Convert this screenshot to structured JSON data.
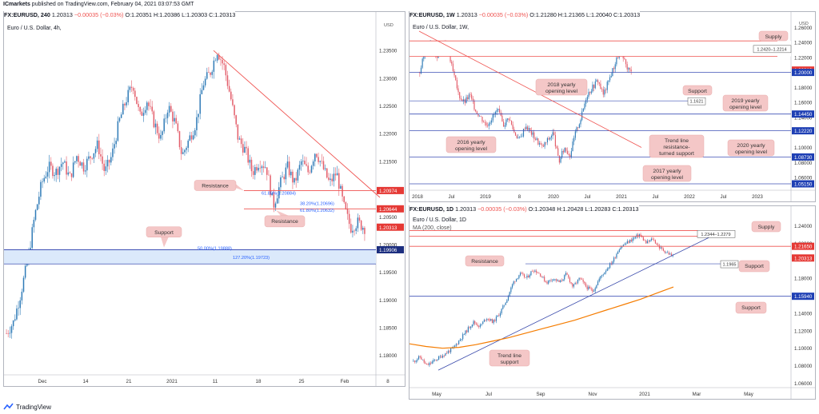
{
  "header": {
    "publisher_line_bold": "ICmarkets",
    "publisher_line": " published on TradingView.com, February 04, 2021 03:07:53 GMT"
  },
  "footer": {
    "brand": "TradingView"
  },
  "colors": {
    "candle_up": "#2f7bb7",
    "candle_down": "#e35d6a",
    "resistance_line": "#ef5350",
    "support_line": "#3f51b5",
    "trend_blue": "#3949ab",
    "ma_orange": "#f57c00",
    "zone_fill": "#dbe9fb",
    "callout_fill": "#f4c7c7",
    "price_red": "#e53935",
    "price_blue": "#1e3fb4",
    "price_navy": "#1c2e7f"
  },
  "panels": [
    {
      "id": "left",
      "header": {
        "symbol": "FX:EURUSD, 240",
        "values": " 1.20313",
        "change": " −0.00035 (−0.03%)",
        "ohlc": " O:1.20351 H:1.20386 L:1.20303 C:1.20313"
      },
      "subtitle": "Euro / U.S. Dollar, 4h,",
      "currency": "USD"
    },
    {
      "id": "top-right",
      "header": {
        "symbol": "FX:EURUSD, 1W",
        "values": " 1.20313",
        "change": " −0.00035 (−0.03%)",
        "ohlc": " O:1.21280 H:1.21365 L:1.20040 C:1.20313"
      },
      "subtitle": "Euro / U.S. Dollar, 1W,",
      "currency": "USD"
    },
    {
      "id": "bottom-right",
      "header": {
        "symbol": "FX:EURUSD, 1D",
        "values": " 1.20313",
        "change": " −0.00035 (−0.03%)",
        "ohlc": " O:1.20348 H:1.20428 L:1.20283 C:1.20313"
      },
      "subtitle": "Euro / U.S. Dollar, 1D",
      "subtitle2": "MA (200, close)"
    }
  ],
  "chart_data": [
    {
      "type": "candlestick",
      "panel": "left",
      "ylim": [
        1.1765,
        1.2405
      ],
      "x_ticks": [
        "Dec",
        "14",
        "21",
        "2021",
        "11",
        "18",
        "25",
        "Feb",
        "8"
      ],
      "y_ticks": [
        "1.23500",
        "1.23000",
        "1.22500",
        "1.22000",
        "1.21500",
        "1.20500",
        "1.20000",
        "1.19500",
        "1.19000",
        "1.18500",
        "1.18000"
      ],
      "close_path": [
        1.184,
        1.186,
        1.191,
        1.197,
        1.205,
        1.211,
        1.214,
        1.213,
        1.215,
        1.212,
        1.216,
        1.214,
        1.216,
        1.218,
        1.213,
        1.216,
        1.222,
        1.226,
        1.229,
        1.223,
        1.226,
        1.222,
        1.219,
        1.225,
        1.222,
        1.216,
        1.219,
        1.222,
        1.229,
        1.231,
        1.235,
        1.232,
        1.226,
        1.219,
        1.217,
        1.213,
        1.215,
        1.214,
        1.207,
        1.211,
        1.214,
        1.211,
        1.215,
        1.213,
        1.217,
        1.214,
        1.211,
        1.213,
        1.207,
        1.203,
        1.204,
        1.203
      ],
      "price_labels": [
        {
          "value": "1.20974",
          "level": 1.20974,
          "color": "red"
        },
        {
          "value": "1.20644",
          "level": 1.20644,
          "color": "red"
        },
        {
          "value": "1.20313",
          "level": 1.20313,
          "color": "red"
        },
        {
          "value": "1.19906",
          "level": 1.19906,
          "color": "navy"
        }
      ],
      "fib_labels": [
        {
          "text": "61.80%(1.20884)",
          "level": 1.20884
        },
        {
          "text": "38.20%(1.20696)",
          "level": 1.20696
        },
        {
          "text": "61.80%(1.20632)",
          "level": 1.20632
        },
        {
          "text": "50.00%(1.19888)",
          "level": 1.19888
        },
        {
          "text": "127.20%(1.19723)",
          "level": 1.19723
        }
      ],
      "annotations": [
        "Resistance",
        "Resistance",
        "Support"
      ]
    },
    {
      "type": "candlestick",
      "panel": "top-right",
      "ylim": [
        1.043,
        1.272
      ],
      "x_ticks": [
        "2018",
        "Jul",
        "2019",
        "8",
        "2020",
        "Jul",
        "2021",
        "Jul",
        "2022",
        "Jul",
        "2023"
      ],
      "y_ticks": [
        "1.26000",
        "1.24000",
        "1.22000",
        "1.18000",
        "1.16000",
        "1.14000",
        "1.10000",
        "1.08000",
        "1.06000"
      ],
      "close_path": [
        1.2,
        1.23,
        1.24,
        1.22,
        1.24,
        1.23,
        1.2,
        1.17,
        1.16,
        1.17,
        1.15,
        1.14,
        1.13,
        1.14,
        1.15,
        1.13,
        1.14,
        1.12,
        1.11,
        1.13,
        1.12,
        1.11,
        1.1,
        1.11,
        1.12,
        1.08,
        1.1,
        1.09,
        1.12,
        1.14,
        1.17,
        1.18,
        1.19,
        1.17,
        1.19,
        1.21,
        1.23,
        1.21,
        1.2
      ],
      "price_labels": [
        {
          "value": "1.20313",
          "level": 1.20313,
          "color": "red"
        },
        {
          "value": "1.20000",
          "level": 1.2,
          "color": "blue"
        },
        {
          "value": "1.14450",
          "level": 1.1445,
          "color": "blue"
        },
        {
          "value": "1.12220",
          "level": 1.1222,
          "color": "blue"
        },
        {
          "value": "1.08730",
          "level": 1.0873,
          "color": "blue"
        },
        {
          "value": "1.05150",
          "level": 1.0515,
          "color": "blue"
        }
      ],
      "zone_label": "1.2420–1.2214",
      "support_small": "1.1621",
      "annotations": [
        "Supply",
        "Support",
        "2018 yearly opening level",
        "2019 yearly opening level",
        "2016 yearly opening level",
        "Trend line resistance-turned support",
        "2020 yearly opening level",
        "2017 yearly opening level"
      ]
    },
    {
      "type": "candlestick",
      "panel": "bottom-right",
      "ylim": [
        1.055,
        1.255
      ],
      "x_ticks": [
        "May",
        "Jul",
        "Sep",
        "Nov",
        "2021",
        "Mar",
        "May"
      ],
      "y_ticks": [
        "1.24000",
        "1.22000",
        "1.18000",
        "1.16000",
        "1.14000",
        "1.12000",
        "1.10000",
        "1.08000",
        "1.06000"
      ],
      "close_path": [
        1.085,
        1.09,
        1.08,
        1.085,
        1.09,
        1.095,
        1.1,
        1.11,
        1.12,
        1.13,
        1.125,
        1.135,
        1.13,
        1.14,
        1.155,
        1.175,
        1.185,
        1.18,
        1.19,
        1.185,
        1.175,
        1.18,
        1.175,
        1.185,
        1.17,
        1.18,
        1.17,
        1.165,
        1.18,
        1.19,
        1.2,
        1.215,
        1.22,
        1.225,
        1.23,
        1.22,
        1.225,
        1.215,
        1.21,
        1.205
      ],
      "ma_path": [
        1.105,
        1.102,
        1.1,
        1.101,
        1.104,
        1.108,
        1.112,
        1.117,
        1.122,
        1.127,
        1.132,
        1.138,
        1.144,
        1.15,
        1.156,
        1.163,
        1.17
      ],
      "price_labels": [
        {
          "value": "1.21650",
          "level": 1.2165,
          "color": "red"
        },
        {
          "value": "1.20313",
          "level": 1.20313,
          "color": "red"
        },
        {
          "value": "1.15940",
          "level": 1.1594,
          "color": "blue"
        }
      ],
      "zone_label": "1.2344–1.2279",
      "support_small": "1.1965",
      "annotations": [
        "Supply",
        "Resistance",
        "Support",
        "Support",
        "Trend line support"
      ]
    }
  ]
}
